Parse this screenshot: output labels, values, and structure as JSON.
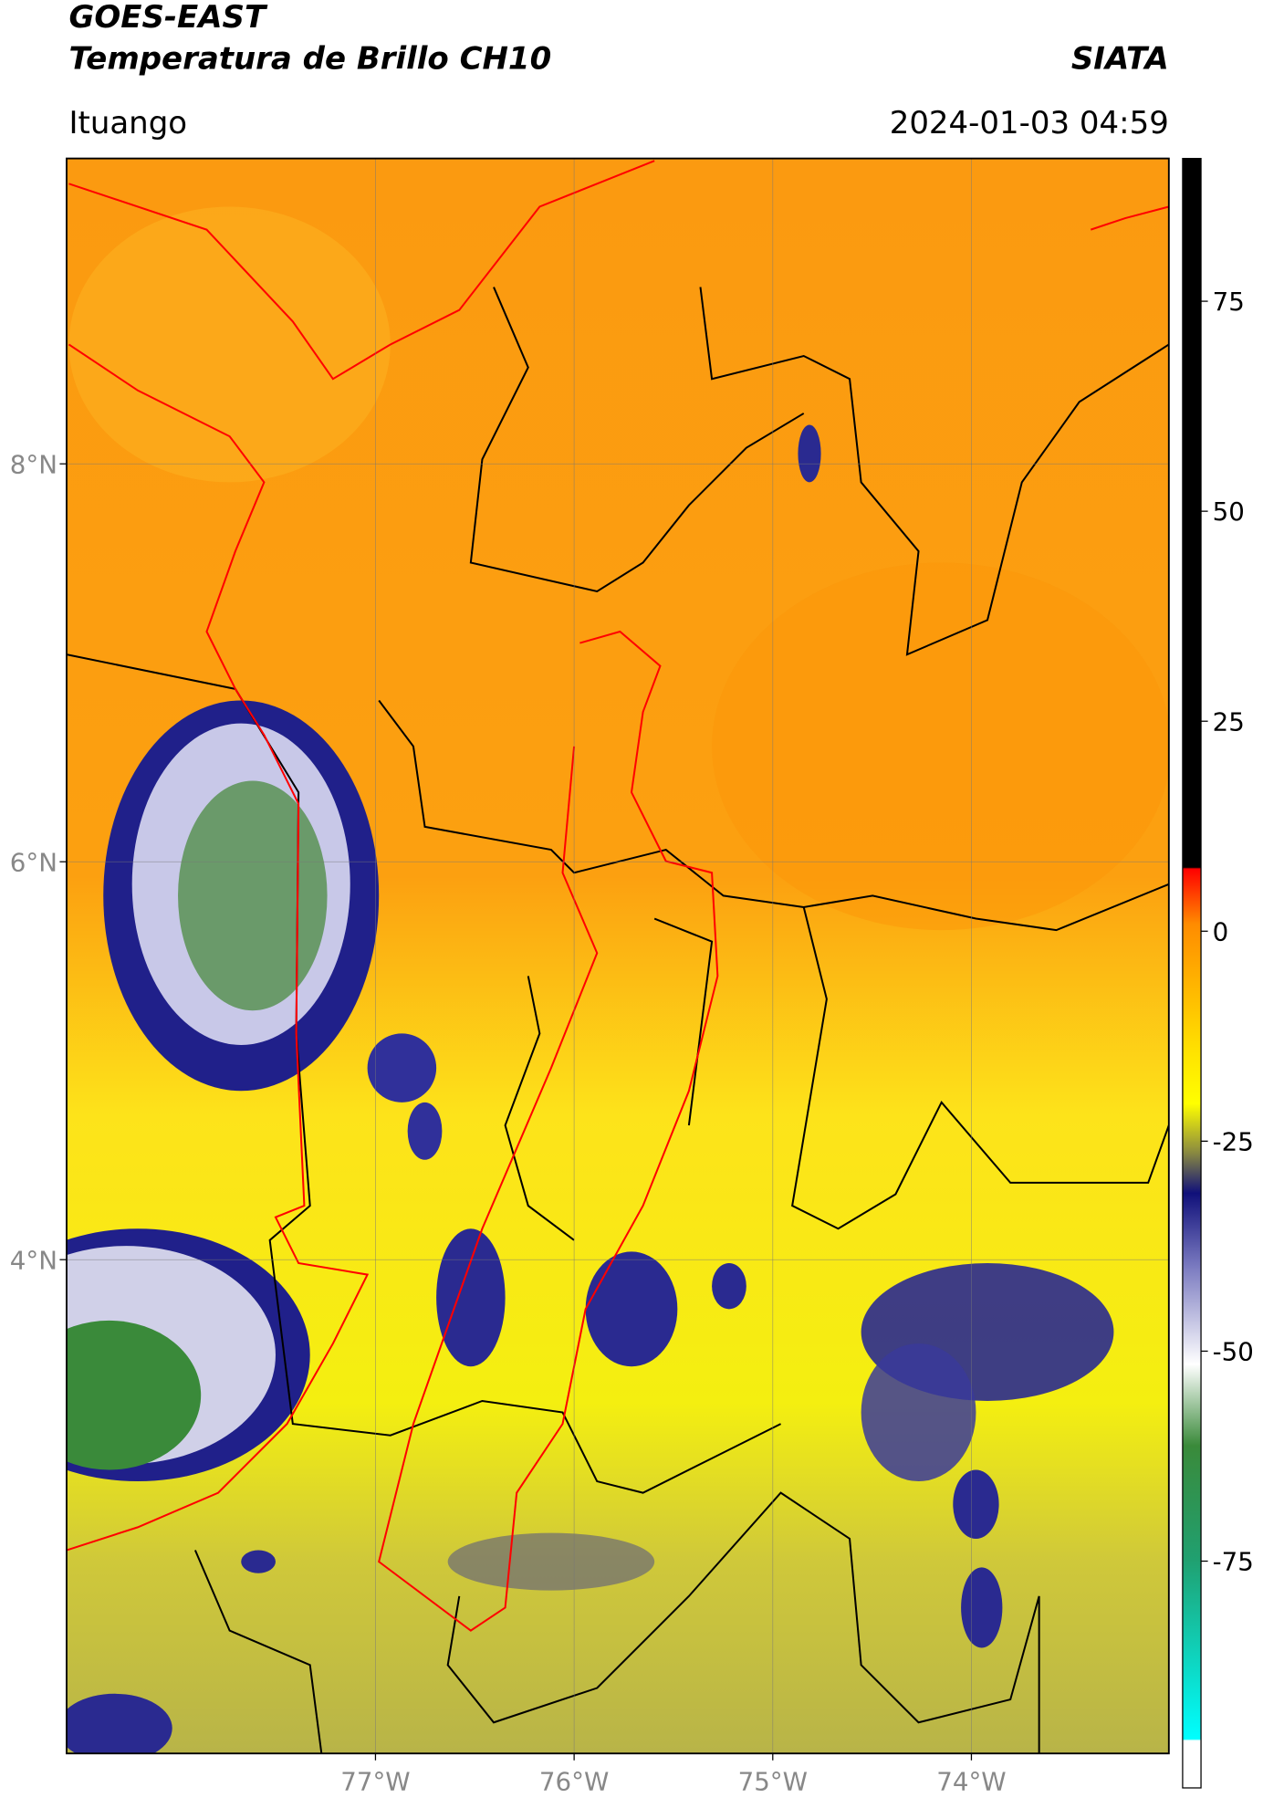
{
  "header": {
    "title": "GOES-EAST",
    "subtitle": "Temperatura de Brillo CH10",
    "agency": "SIATA",
    "location": "Ituango",
    "datetime": "2024-01-03 04:59"
  },
  "map": {
    "xlim": [
      -78.555,
      -73.006
    ],
    "ylim": [
      1.518,
      9.535
    ],
    "xticks": [
      {
        "value": -77,
        "label": "77°W"
      },
      {
        "value": -76,
        "label": "76°W"
      },
      {
        "value": -75,
        "label": "75°W"
      },
      {
        "value": -74,
        "label": "74°W"
      }
    ],
    "yticks": [
      {
        "value": 8,
        "label": "8°N"
      },
      {
        "value": 6,
        "label": "6°N"
      },
      {
        "value": 4,
        "label": "4°N"
      }
    ],
    "grid": true
  },
  "colorbar": {
    "lim": [
      -102,
      92
    ],
    "ticks": [
      75,
      50,
      25,
      0,
      -25,
      -50,
      -75
    ]
  }
}
